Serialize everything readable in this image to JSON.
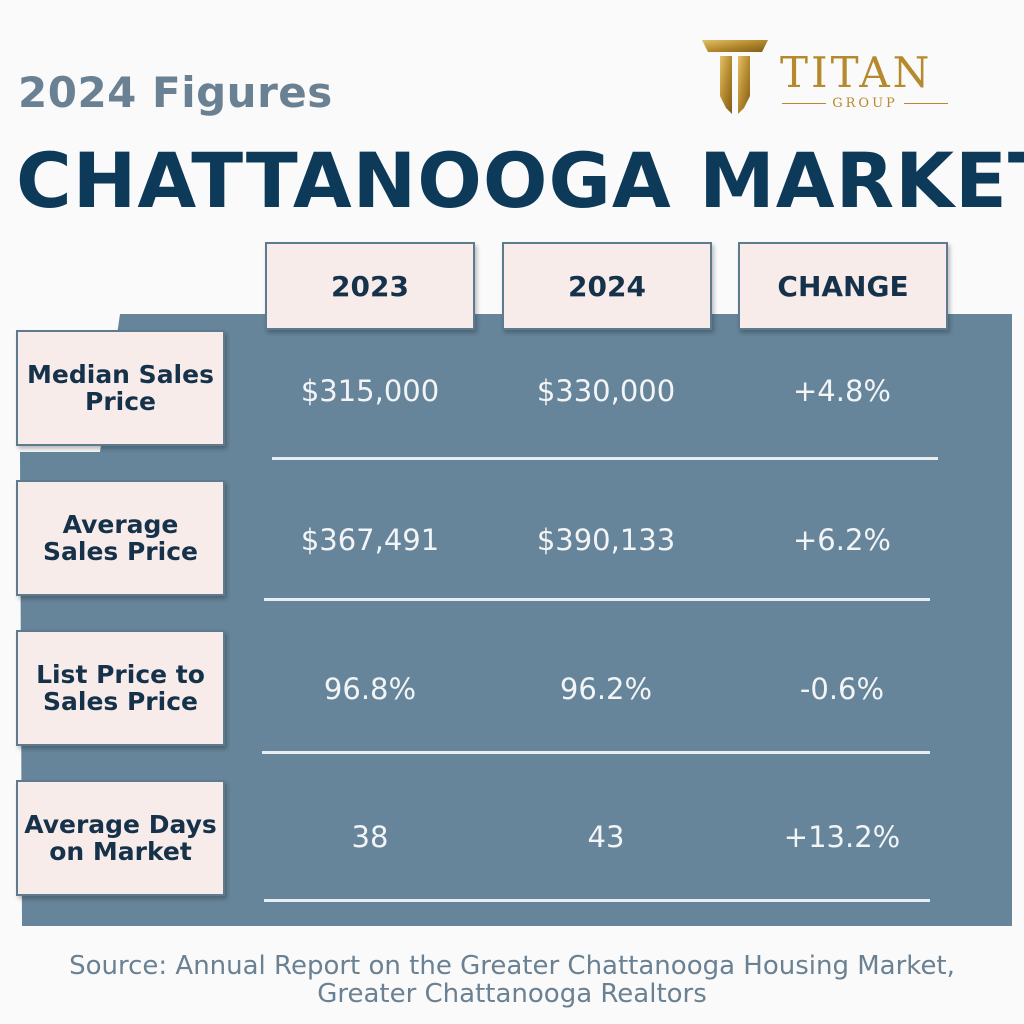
{
  "header": {
    "subtitle": "2024 Figures",
    "title": "CHATTANOOGA MARKET"
  },
  "logo": {
    "icon": "titan-t-icon",
    "word": "TITAN",
    "sub": "GROUP"
  },
  "table": {
    "columns": [
      "2023",
      "2024",
      "CHANGE"
    ],
    "rows": [
      {
        "label": "Median Sales Price",
        "y2023": "$315,000",
        "y2024": "$330,000",
        "change": "+4.8%"
      },
      {
        "label": "Average Sales Price",
        "y2023": "$367,491",
        "y2024": "$390,133",
        "change": "+6.2%"
      },
      {
        "label": "List Price to Sales Price",
        "y2023": "96.8%",
        "y2024": "96.2%",
        "change": "-0.6%"
      },
      {
        "label": "Average Days on Market",
        "y2023": "38",
        "y2024": "43",
        "change": "+13.2%"
      }
    ]
  },
  "source": "Source: Annual Report on the Greater Chattanooga Housing Market, Greater Chattanooga Realtors",
  "colors": {
    "panel": "#66859a",
    "title": "#0e3a5a",
    "accent_gold": "#b58a2e",
    "cell_bg": "#f7ecea"
  }
}
